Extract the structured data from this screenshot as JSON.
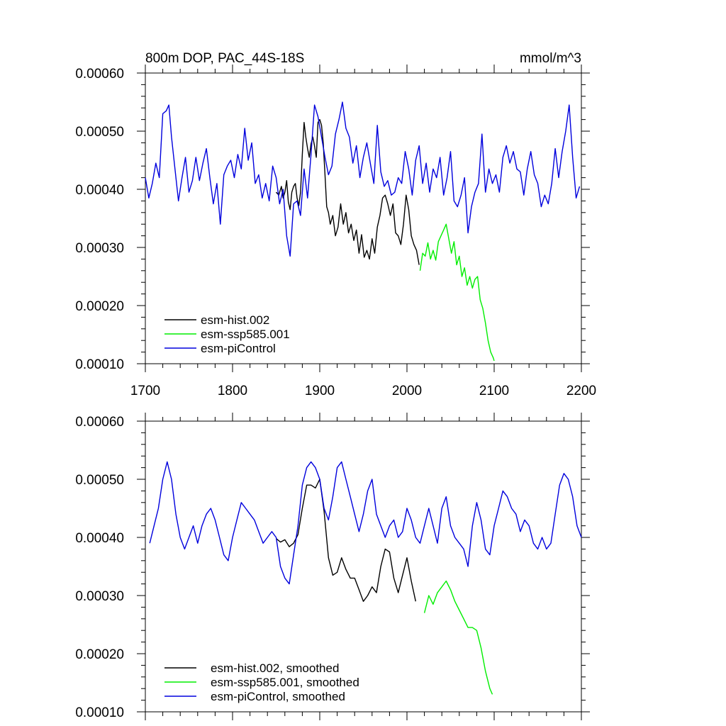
{
  "chart_data": [
    {
      "type": "line",
      "id": "raw",
      "title": "800m DOP, PAC_44S-18S",
      "units": "mmol/m^3",
      "xlim": [
        1700,
        2200
      ],
      "ylim": [
        0.0001,
        0.0006
      ],
      "xticks": [
        "1700",
        "1800",
        "1900",
        "2000",
        "2100",
        "2200"
      ],
      "yticks": [
        "0.00010",
        "0.00020",
        "0.00030",
        "0.00040",
        "0.00050",
        "0.00060"
      ],
      "legend_position": "bottom-left",
      "series": [
        {
          "name": "esm-hist.002",
          "color": "#000000",
          "x": [
            1850,
            1853,
            1856,
            1858,
            1860,
            1862,
            1864,
            1866,
            1868,
            1870,
            1872,
            1874,
            1876,
            1878,
            1880,
            1882,
            1884,
            1886,
            1888,
            1890,
            1892,
            1894,
            1896,
            1898,
            1900,
            1902,
            1904,
            1906,
            1908,
            1910,
            1912,
            1915,
            1918,
            1921,
            1924,
            1927,
            1930,
            1933,
            1936,
            1939,
            1942,
            1945,
            1948,
            1951,
            1954,
            1957,
            1960,
            1963,
            1966,
            1969,
            1972,
            1975,
            1978,
            1981,
            1984,
            1987,
            1990,
            1993,
            1996,
            1999,
            2002,
            2005,
            2008,
            2011,
            2014
          ],
          "values": [
            0.000395,
            0.00039,
            0.000405,
            0.000385,
            0.000395,
            0.000415,
            0.000378,
            0.000365,
            0.000395,
            0.000405,
            0.00041,
            0.000385,
            0.000372,
            0.000395,
            0.00046,
            0.000515,
            0.00049,
            0.00047,
            0.000455,
            0.000478,
            0.00049,
            0.000475,
            0.000455,
            0.000515,
            0.00052,
            0.00051,
            0.00048,
            0.000425,
            0.00037,
            0.00036,
            0.00034,
            0.000355,
            0.00032,
            0.000335,
            0.000375,
            0.00034,
            0.00036,
            0.000325,
            0.00034,
            0.000312,
            0.00033,
            0.00029,
            0.000322,
            0.000283,
            0.000295,
            0.00028,
            0.000315,
            0.00029,
            0.000335,
            0.000355,
            0.000385,
            0.00039,
            0.000375,
            0.000355,
            0.000375,
            0.000325,
            0.00032,
            0.000305,
            0.00034,
            0.00039,
            0.000365,
            0.00032,
            0.000305,
            0.000295,
            0.00027
          ]
        },
        {
          "name": "esm-ssp585.001",
          "color": "#00ee00",
          "x": [
            2015,
            2018,
            2021,
            2024,
            2027,
            2030,
            2033,
            2036,
            2039,
            2042,
            2045,
            2048,
            2051,
            2054,
            2057,
            2060,
            2063,
            2066,
            2069,
            2072,
            2075,
            2078,
            2081,
            2084,
            2087,
            2090,
            2093,
            2096,
            2099,
            2100
          ],
          "values": [
            0.00026,
            0.00029,
            0.000285,
            0.000308,
            0.00028,
            0.000295,
            0.000278,
            0.00031,
            0.00032,
            0.00033,
            0.00034,
            0.000315,
            0.00029,
            0.00031,
            0.00027,
            0.000285,
            0.00025,
            0.000265,
            0.000235,
            0.00025,
            0.00023,
            0.000245,
            0.00025,
            0.00021,
            0.000195,
            0.00017,
            0.00014,
            0.00012,
            0.00011,
            0.000105
          ]
        },
        {
          "name": "esm-piControl",
          "color": "#0000dd",
          "x": [
            1700,
            1704,
            1708,
            1712,
            1716,
            1720,
            1724,
            1727,
            1730,
            1734,
            1738,
            1742,
            1746,
            1750,
            1754,
            1758,
            1762,
            1766,
            1770,
            1774,
            1778,
            1782,
            1786,
            1790,
            1794,
            1798,
            1802,
            1806,
            1810,
            1814,
            1818,
            1822,
            1826,
            1830,
            1834,
            1838,
            1842,
            1846,
            1850,
            1854,
            1858,
            1862,
            1866,
            1870,
            1874,
            1878,
            1882,
            1886,
            1890,
            1894,
            1898,
            1902,
            1906,
            1910,
            1914,
            1918,
            1922,
            1926,
            1930,
            1934,
            1938,
            1942,
            1946,
            1950,
            1954,
            1958,
            1962,
            1966,
            1970,
            1974,
            1978,
            1982,
            1986,
            1990,
            1994,
            1998,
            2002,
            2006,
            2010,
            2014,
            2018,
            2022,
            2026,
            2030,
            2034,
            2038,
            2042,
            2046,
            2050,
            2054,
            2058,
            2062,
            2066,
            2070,
            2074,
            2078,
            2082,
            2086,
            2090,
            2094,
            2098,
            2102,
            2106,
            2110,
            2114,
            2118,
            2122,
            2126,
            2130,
            2134,
            2138,
            2142,
            2146,
            2150,
            2154,
            2158,
            2162,
            2166,
            2170,
            2174,
            2178,
            2182,
            2186,
            2190,
            2194,
            2198
          ],
          "values": [
            0.00042,
            0.000385,
            0.00041,
            0.000445,
            0.00042,
            0.00053,
            0.000535,
            0.000545,
            0.00049,
            0.000435,
            0.00038,
            0.00042,
            0.000455,
            0.000395,
            0.000415,
            0.000455,
            0.000415,
            0.000445,
            0.00047,
            0.00042,
            0.000375,
            0.00041,
            0.00034,
            0.000425,
            0.00044,
            0.00045,
            0.00042,
            0.00046,
            0.000435,
            0.000505,
            0.00045,
            0.00048,
            0.00041,
            0.000425,
            0.000385,
            0.00041,
            0.00038,
            0.00044,
            0.00042,
            0.000375,
            0.0004,
            0.00032,
            0.000285,
            0.000375,
            0.00038,
            0.000355,
            0.000435,
            0.000385,
            0.00046,
            0.000545,
            0.000525,
            0.00049,
            0.000455,
            0.000425,
            0.00044,
            0.000495,
            0.00052,
            0.00055,
            0.000505,
            0.00049,
            0.000445,
            0.000475,
            0.00042,
            0.000455,
            0.00048,
            0.000445,
            0.00041,
            0.00051,
            0.00043,
            0.000405,
            0.000415,
            0.00039,
            0.000395,
            0.00042,
            0.00041,
            0.000465,
            0.000435,
            0.00039,
            0.00045,
            0.000475,
            0.00041,
            0.000445,
            0.000395,
            0.000435,
            0.00042,
            0.000455,
            0.00039,
            0.00042,
            0.000465,
            0.00038,
            0.00037,
            0.00039,
            0.00042,
            0.000325,
            0.00037,
            0.000395,
            0.00041,
            0.000495,
            0.000395,
            0.000435,
            0.00041,
            0.000425,
            0.000395,
            0.000455,
            0.000475,
            0.000445,
            0.000465,
            0.000435,
            0.00043,
            0.00039,
            0.000435,
            0.000465,
            0.000425,
            0.00041,
            0.00037,
            0.00039,
            0.000375,
            0.00041,
            0.00047,
            0.00042,
            0.000465,
            0.0005,
            0.000545,
            0.000455,
            0.000385,
            0.000405
          ]
        }
      ]
    },
    {
      "type": "line",
      "id": "smoothed",
      "xlim": [
        1700,
        2200
      ],
      "ylim": [
        0.0001,
        0.0006
      ],
      "yticks": [
        "0.00010",
        "0.00020",
        "0.00030",
        "0.00040",
        "0.00050",
        "0.00060"
      ],
      "legend_position": "bottom-left",
      "series": [
        {
          "name": "esm-hist.002, smoothed",
          "color": "#000000",
          "x": [
            1850,
            1855,
            1860,
            1865,
            1870,
            1875,
            1880,
            1885,
            1890,
            1895,
            1900,
            1905,
            1910,
            1915,
            1920,
            1925,
            1930,
            1935,
            1940,
            1945,
            1950,
            1955,
            1960,
            1965,
            1970,
            1975,
            1980,
            1985,
            1990,
            1995,
            2000,
            2005,
            2010
          ],
          "values": [
            0.000398,
            0.000392,
            0.000396,
            0.000384,
            0.00039,
            0.000405,
            0.00045,
            0.00049,
            0.00049,
            0.000485,
            0.0005,
            0.000445,
            0.000365,
            0.000335,
            0.00034,
            0.000365,
            0.000345,
            0.00033,
            0.00033,
            0.00031,
            0.00029,
            0.0003,
            0.000315,
            0.000305,
            0.00035,
            0.00038,
            0.000375,
            0.00033,
            0.000305,
            0.000335,
            0.000365,
            0.000325,
            0.00029
          ]
        },
        {
          "name": "esm-ssp585.001, smoothed",
          "color": "#00ee00",
          "x": [
            2020,
            2025,
            2030,
            2035,
            2040,
            2045,
            2050,
            2055,
            2060,
            2065,
            2070,
            2075,
            2080,
            2085,
            2090,
            2095,
            2098
          ],
          "values": [
            0.00027,
            0.0003,
            0.000285,
            0.000305,
            0.000315,
            0.000325,
            0.00031,
            0.00029,
            0.000275,
            0.00026,
            0.000245,
            0.000245,
            0.00024,
            0.00021,
            0.00017,
            0.00014,
            0.00013
          ]
        },
        {
          "name": "esm-piControl, smoothed",
          "color": "#0000dd",
          "x": [
            1705,
            1710,
            1715,
            1720,
            1725,
            1730,
            1735,
            1740,
            1745,
            1750,
            1755,
            1760,
            1765,
            1770,
            1775,
            1780,
            1785,
            1790,
            1795,
            1800,
            1805,
            1810,
            1815,
            1820,
            1825,
            1830,
            1835,
            1840,
            1845,
            1850,
            1855,
            1860,
            1865,
            1870,
            1875,
            1880,
            1885,
            1890,
            1895,
            1900,
            1905,
            1910,
            1915,
            1920,
            1925,
            1930,
            1935,
            1940,
            1945,
            1950,
            1955,
            1960,
            1965,
            1970,
            1975,
            1980,
            1985,
            1990,
            1995,
            2000,
            2005,
            2010,
            2015,
            2020,
            2025,
            2030,
            2035,
            2040,
            2045,
            2050,
            2055,
            2060,
            2065,
            2070,
            2075,
            2080,
            2085,
            2090,
            2095,
            2100,
            2105,
            2110,
            2115,
            2120,
            2125,
            2130,
            2135,
            2140,
            2145,
            2150,
            2155,
            2160,
            2165,
            2170,
            2175,
            2180,
            2185,
            2190,
            2195,
            2200
          ],
          "values": [
            0.00039,
            0.00042,
            0.00045,
            0.0005,
            0.00053,
            0.0005,
            0.00044,
            0.0004,
            0.00038,
            0.0004,
            0.00042,
            0.00039,
            0.00042,
            0.00044,
            0.00045,
            0.00043,
            0.0004,
            0.00037,
            0.00036,
            0.0004,
            0.00043,
            0.00046,
            0.00045,
            0.00044,
            0.00043,
            0.00041,
            0.00039,
            0.0004,
            0.00041,
            0.0004,
            0.00035,
            0.00033,
            0.00032,
            0.00037,
            0.00042,
            0.00049,
            0.00052,
            0.00053,
            0.00052,
            0.0005,
            0.00045,
            0.00043,
            0.00047,
            0.00052,
            0.00053,
            0.0005,
            0.00047,
            0.00044,
            0.00041,
            0.00044,
            0.00048,
            0.0005,
            0.00044,
            0.00042,
            0.0004,
            0.00042,
            0.00043,
            0.0004,
            0.00041,
            0.00045,
            0.00043,
            0.0004,
            0.00039,
            0.00042,
            0.00045,
            0.00042,
            0.00039,
            0.00045,
            0.00047,
            0.00042,
            0.0004,
            0.00039,
            0.00038,
            0.00035,
            0.00042,
            0.00046,
            0.00043,
            0.00038,
            0.00037,
            0.00042,
            0.00045,
            0.00048,
            0.00047,
            0.00045,
            0.00044,
            0.00041,
            0.00043,
            0.00042,
            0.00039,
            0.00038,
            0.0004,
            0.00038,
            0.00039,
            0.00044,
            0.00049,
            0.00051,
            0.0005,
            0.00047,
            0.00042,
            0.0004
          ]
        }
      ]
    }
  ]
}
